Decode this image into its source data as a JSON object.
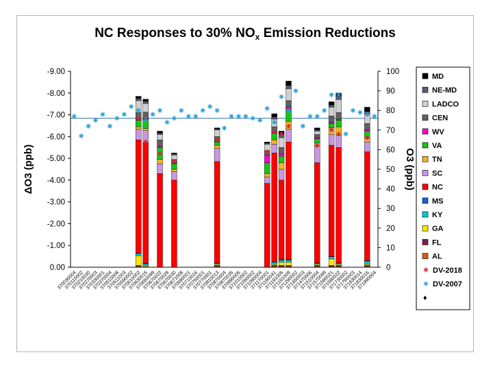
{
  "chart_data": {
    "type": "bar",
    "title_main": "NC Responses to 30% NO",
    "title_sub": "x",
    "title_end": " Emission Reductions",
    "ylabel_left": "ΔO3 (ppb)",
    "ylabel_right": "O3 (ppb)",
    "ylim_left": [
      0,
      -9
    ],
    "ylim_right": [
      0,
      100
    ],
    "yticks_left": [
      "0.00",
      "-1.00",
      "-2.00",
      "-3.00",
      "-4.00",
      "-5.00",
      "-6.00",
      "-7.00",
      "-8.00",
      "-9.00"
    ],
    "yticks_right": [
      "0",
      "10",
      "20",
      "30",
      "40",
      "50",
      "60",
      "70",
      "80",
      "90",
      "100"
    ],
    "reference_line_value": 76,
    "categories": [
      "370030004",
      "370110002",
      "370210030",
      "370270003",
      "370330001",
      "370370004",
      "370510008",
      "370511003",
      "370590002",
      "370610002",
      "370630015",
      "370650099",
      "370670022",
      "370670028",
      "370670030",
      "370671008",
      "370690001",
      "370710016",
      "370750001",
      "370770001",
      "370810013",
      "370870004",
      "370870035",
      "370990005",
      "371010002",
      "371050002",
      "371090004",
      "371170001",
      "371190041",
      "371191005",
      "371191009",
      "371290002",
      "371450003",
      "371470006",
      "371510004",
      "371570099",
      "371590021",
      "371590022",
      "371730002",
      "371790003",
      "371830014",
      "371830016",
      "371990004"
    ],
    "legend": [
      "MD",
      "NE-MD",
      "LADCO",
      "CEN",
      "WV",
      "VA",
      "TN",
      "SC",
      "NC",
      "MS",
      "KY",
      "GA",
      "FL",
      "AL",
      "DV-2018",
      "DV-2007",
      "♦"
    ],
    "colors": {
      "AL": "#e05a10",
      "FL": "#7b1f4e",
      "GA": "#ffe600",
      "KY": "#00c8d8",
      "MS": "#1f5fd6",
      "NC": "#ff0000",
      "SC": "#c898e0",
      "TN": "#f5b325",
      "VA": "#18c418",
      "WV": "#ff00cc",
      "CEN": "#606060",
      "LADCO": "#d0d0d0",
      "NE-MD": "#5a5a7a",
      "MD": "#000000",
      "DV2018": "#e0202a",
      "DV2007": "#2a9ad0"
    },
    "series": [
      {
        "name": "AL",
        "values": [
          0,
          0,
          0,
          0,
          0,
          0,
          0,
          0,
          0,
          0.05,
          0,
          0,
          0,
          0,
          0,
          0,
          0,
          0,
          0,
          0,
          0.05,
          0,
          0,
          0,
          0,
          0,
          0,
          0,
          0.05,
          0.05,
          0.05,
          0,
          0,
          0,
          0.05,
          0,
          0.05,
          0.05,
          0,
          0,
          0,
          0.05,
          0
        ]
      },
      {
        "name": "FL",
        "values": [
          0,
          0,
          0,
          0,
          0,
          0,
          0,
          0,
          0,
          0.03,
          0,
          0,
          0,
          0,
          0,
          0,
          0,
          0,
          0,
          0,
          0.03,
          0,
          0,
          0,
          0,
          0,
          0,
          0,
          0.03,
          0.03,
          0.03,
          0,
          0,
          0,
          0.03,
          0,
          0.03,
          0.03,
          0,
          0,
          0,
          0.03,
          0
        ]
      },
      {
        "name": "GA",
        "values": [
          0,
          0,
          0,
          0,
          0,
          0,
          0,
          0,
          0,
          0.45,
          0.05,
          0,
          0,
          0,
          0,
          0,
          0,
          0,
          0,
          0,
          0.05,
          0,
          0,
          0,
          0,
          0,
          0,
          0,
          0.05,
          0.15,
          0.15,
          0,
          0,
          0,
          0.05,
          0,
          0.3,
          0.05,
          0,
          0,
          0,
          0.05,
          0
        ]
      },
      {
        "name": "KY",
        "values": [
          0,
          0,
          0,
          0,
          0,
          0,
          0,
          0,
          0,
          0.1,
          0.1,
          0,
          0,
          0,
          0,
          0,
          0,
          0,
          0,
          0,
          0.05,
          0,
          0,
          0,
          0,
          0,
          0,
          0,
          0.1,
          0.1,
          0.1,
          0,
          0,
          0,
          0.05,
          0,
          0.1,
          0.05,
          0,
          0,
          0,
          0.15,
          0
        ]
      },
      {
        "name": "MS",
        "values": [
          0,
          0,
          0,
          0,
          0,
          0,
          0,
          0,
          0,
          0.02,
          0.02,
          0,
          0,
          0,
          0,
          0,
          0,
          0,
          0,
          0,
          0.02,
          0,
          0,
          0,
          0,
          0,
          0,
          0,
          0.02,
          0.02,
          0.02,
          0,
          0,
          0,
          0.02,
          0,
          0.02,
          0.02,
          0,
          0,
          0,
          0.02,
          0
        ]
      },
      {
        "name": "NC",
        "values": [
          0,
          0,
          0,
          0,
          0,
          0,
          0,
          0,
          0,
          5.2,
          5.55,
          0,
          4.3,
          0,
          4.0,
          0,
          0,
          0,
          0,
          0,
          4.65,
          0,
          0,
          0,
          0,
          0,
          0,
          3.85,
          5.0,
          3.65,
          5.4,
          0,
          0,
          0,
          4.6,
          0,
          5.1,
          5.3,
          0,
          0,
          0,
          5.0,
          0
        ]
      },
      {
        "name": "SC",
        "values": [
          0,
          0,
          0,
          0,
          0,
          0,
          0,
          0,
          0,
          0.5,
          0.55,
          0,
          0.45,
          0,
          0.4,
          0,
          0,
          0,
          0,
          0,
          0.6,
          0,
          0,
          0,
          0,
          0,
          0,
          0.3,
          0.4,
          0.5,
          0.6,
          0,
          0,
          0,
          0.8,
          0,
          0.5,
          0.55,
          0,
          0,
          0,
          0.45,
          0
        ]
      },
      {
        "name": "TN",
        "values": [
          0,
          0,
          0,
          0,
          0,
          0,
          0,
          0,
          0,
          0.1,
          0.1,
          0,
          0.2,
          0,
          0.1,
          0,
          0,
          0,
          0,
          0,
          0.15,
          0,
          0,
          0,
          0,
          0,
          0,
          0.15,
          0.2,
          0.3,
          0.35,
          0,
          0,
          0,
          0.1,
          0,
          0.3,
          0.4,
          0,
          0,
          0,
          0.2,
          0
        ]
      },
      {
        "name": "VA",
        "values": [
          0,
          0,
          0,
          0,
          0,
          0,
          0,
          0,
          0,
          0.3,
          0.4,
          0,
          0.55,
          0,
          0.25,
          0,
          0,
          0,
          0,
          0,
          0.15,
          0,
          0,
          0,
          0,
          0,
          0,
          0.5,
          0.3,
          0.3,
          0.55,
          0,
          0,
          0,
          0.2,
          0,
          0.2,
          0.3,
          0,
          0,
          0,
          0.3,
          0
        ]
      },
      {
        "name": "WV",
        "values": [
          0,
          0,
          0,
          0,
          0,
          0,
          0,
          0,
          0,
          0.05,
          0.05,
          0,
          0.05,
          0,
          0.05,
          0,
          0,
          0,
          0,
          0,
          0.05,
          0,
          0,
          0,
          0,
          0,
          0,
          0.35,
          0.05,
          0.1,
          0.1,
          0,
          0,
          0,
          0.05,
          0,
          0.05,
          0.05,
          0,
          0,
          0,
          0.05,
          0
        ]
      },
      {
        "name": "CEN",
        "values": [
          0,
          0,
          0,
          0,
          0,
          0,
          0,
          0,
          0,
          0.3,
          0.3,
          0,
          0.3,
          0,
          0.15,
          0,
          0,
          0,
          0,
          0,
          0.2,
          0,
          0,
          0,
          0,
          0,
          0,
          0.2,
          0.25,
          0.3,
          0.3,
          0,
          0,
          0,
          0.15,
          0,
          0.3,
          0.3,
          0,
          0,
          0,
          0.3,
          0
        ]
      },
      {
        "name": "LADCO",
        "values": [
          0,
          0,
          0,
          0,
          0,
          0,
          0,
          0,
          0,
          0.55,
          0.4,
          0,
          0.25,
          0,
          0.2,
          0,
          0,
          0,
          0,
          0,
          0.3,
          0,
          0,
          0,
          0,
          0,
          0,
          0.3,
          0.35,
          0.45,
          0.55,
          0,
          0,
          0,
          0.15,
          0,
          0.4,
          0.6,
          0,
          0,
          0,
          0.45,
          0
        ]
      },
      {
        "name": "NE-MD",
        "values": [
          0,
          0,
          0,
          0,
          0,
          0,
          0,
          0,
          0,
          0.1,
          0.1,
          0,
          0.05,
          0,
          0.05,
          0,
          0,
          0,
          0,
          0,
          0.05,
          0,
          0,
          0,
          0,
          0,
          0,
          0.05,
          0.1,
          0.15,
          0.15,
          0,
          0,
          0,
          0.05,
          0,
          0.1,
          0.15,
          0,
          0,
          0,
          0.1,
          0
        ]
      },
      {
        "name": "MD",
        "values": [
          0,
          0,
          0,
          0,
          0,
          0,
          0,
          0,
          0,
          0.1,
          0.1,
          0,
          0.1,
          0,
          0.05,
          0,
          0,
          0,
          0,
          0,
          0.05,
          0,
          0,
          0,
          0,
          0,
          0,
          0.05,
          0.15,
          0.15,
          0.2,
          0,
          0,
          0,
          0.1,
          0,
          0.15,
          0.15,
          0,
          0,
          0,
          0.2,
          0
        ]
      }
    ],
    "dv2018": [
      null,
      null,
      null,
      null,
      null,
      null,
      null,
      null,
      null,
      76,
      64,
      null,
      58,
      null,
      54,
      null,
      null,
      null,
      null,
      null,
      65,
      null,
      null,
      null,
      null,
      null,
      null,
      59,
      69,
      68,
      72,
      null,
      null,
      null,
      62,
      null,
      70,
      68,
      null,
      null,
      null,
      66,
      null
    ],
    "dv2007": [
      77,
      67,
      72,
      75,
      78,
      72,
      76,
      78,
      82,
      80,
      75,
      78,
      80,
      74,
      76,
      80,
      77,
      77,
      80,
      82,
      80,
      71,
      77,
      77,
      77,
      76,
      75,
      81,
      74,
      87,
      80,
      90,
      72,
      77,
      77,
      80,
      88,
      88,
      68,
      80,
      79,
      78,
      77
    ]
  }
}
